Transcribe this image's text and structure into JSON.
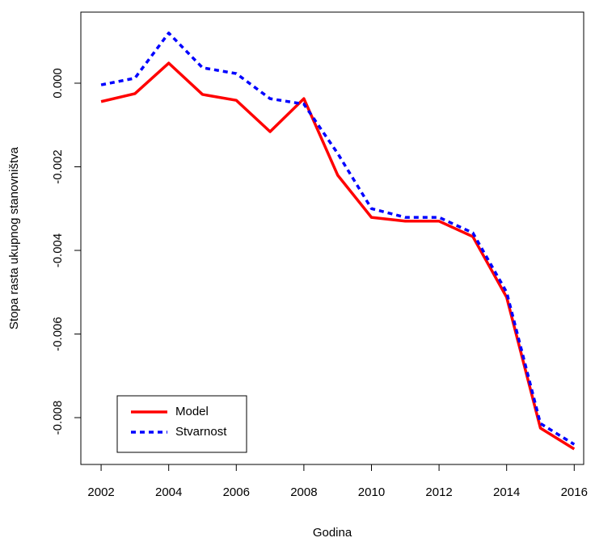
{
  "chart_data": {
    "type": "line",
    "xlabel": "Godina",
    "ylabel": "Stopa rasta ukupnog stanovništva",
    "x": [
      2002,
      2003,
      2004,
      2005,
      2006,
      2007,
      2008,
      2009,
      2010,
      2011,
      2012,
      2013,
      2014,
      2015,
      2016
    ],
    "series": [
      {
        "name": "Model",
        "color": "#ff0000",
        "line_style": "solid",
        "values": [
          -0.00044,
          -0.00025,
          0.00048,
          -0.00027,
          -0.00041,
          -0.00116,
          -0.00037,
          -0.0022,
          -0.00321,
          -0.0033,
          -0.0033,
          -0.00367,
          -0.00512,
          -0.00825,
          -0.00875
        ]
      },
      {
        "name": "Stvarnost",
        "color": "#0000ff",
        "line_style": "dotted",
        "values": [
          -4e-05,
          0.00012,
          0.0012,
          0.00037,
          0.00023,
          -0.00037,
          -0.0005,
          -0.00168,
          -0.003,
          -0.00321,
          -0.00321,
          -0.00358,
          -0.005,
          -0.00814,
          -0.00864
        ]
      }
    ],
    "xlim": [
      2001.4,
      2016.28
    ],
    "xticks": [
      2002,
      2004,
      2006,
      2008,
      2010,
      2012,
      2014,
      2016
    ],
    "ylim": [
      -0.00912,
      0.0017
    ],
    "yticks": [
      {
        "value": 0,
        "label": "0.000"
      },
      -0.002,
      -0.004,
      -0.006,
      -0.008
    ],
    "legend_position": "bottom-left"
  }
}
